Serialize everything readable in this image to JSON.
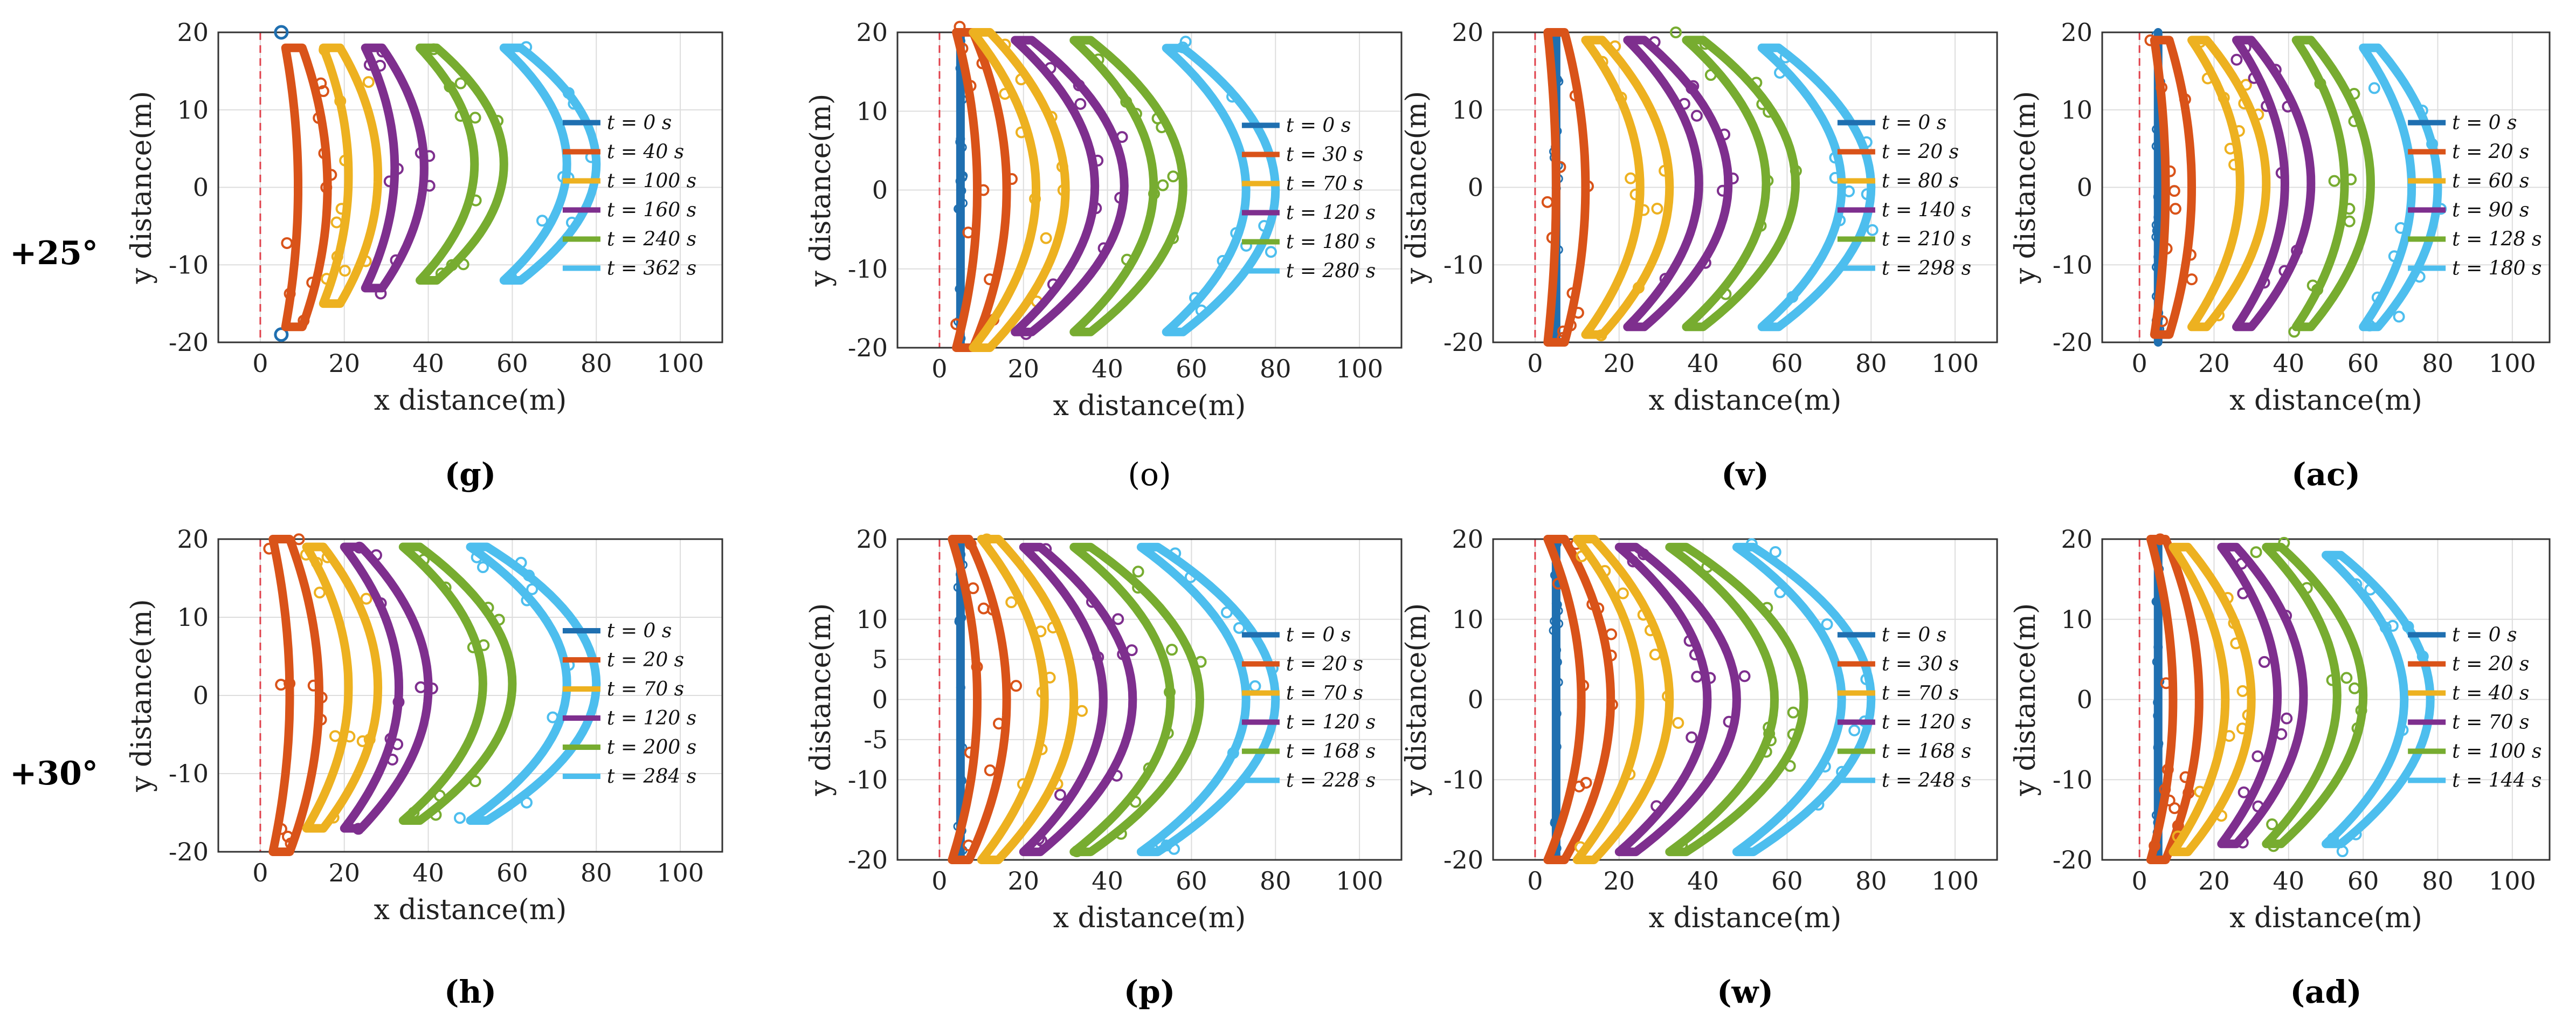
{
  "row_labels": [
    "+25°",
    "+30°"
  ],
  "colors": {
    "t0": "#1f6fb0",
    "t1": "#d95319",
    "t2": "#edb120",
    "t3": "#7e2f8e",
    "t4": "#77ac30",
    "t5": "#4dbeee",
    "reference_line": "#e0414b",
    "grid": "#dddddd"
  },
  "chart_data": [
    {
      "panel": "(g)",
      "type": "scatter",
      "xlabel": "x distance(m)",
      "ylabel": "y distance(m)",
      "xlim": [
        -10,
        110
      ],
      "ylim": [
        -20,
        20
      ],
      "xticks": [
        0,
        20,
        40,
        60,
        80,
        100
      ],
      "yticks": [
        -20,
        -10,
        0,
        10,
        20
      ],
      "grid": true,
      "legend_position": "right",
      "series": [
        {
          "name": "t = 0 s",
          "x_center": 5,
          "x_edge": 5,
          "y_extent": [
            -19,
            20
          ],
          "shape": "sparse"
        },
        {
          "name": "t = 40 s",
          "x_center": 14,
          "x_edge": 10,
          "y_extent": [
            -18,
            18
          ]
        },
        {
          "name": "t = 100 s",
          "x_center": 26,
          "x_edge": 19,
          "y_extent": [
            -15,
            18
          ]
        },
        {
          "name": "t = 160 s",
          "x_center": 37,
          "x_edge": 29,
          "y_extent": [
            -13,
            18
          ]
        },
        {
          "name": "t = 240 s",
          "x_center": 56,
          "x_edge": 42,
          "y_extent": [
            -12,
            18
          ]
        },
        {
          "name": "t = 362 s",
          "x_center": 78,
          "x_edge": 62,
          "y_extent": [
            -12,
            18
          ]
        }
      ]
    },
    {
      "panel": "(o)",
      "type": "scatter",
      "xlabel": "x distance(m)",
      "ylabel": "y distance(m)",
      "xlim": [
        -10,
        110
      ],
      "ylim": [
        -20,
        20
      ],
      "xticks": [
        0,
        20,
        40,
        60,
        80,
        100
      ],
      "yticks": [
        -20,
        -10,
        0,
        10,
        20
      ],
      "grid": true,
      "legend_position": "right",
      "series": [
        {
          "name": "t = 0 s",
          "x_center": 5,
          "x_edge": 5,
          "y_extent": [
            -20,
            20
          ],
          "shape": "line"
        },
        {
          "name": "t = 30 s",
          "x_center": 14,
          "x_edge": 8,
          "y_extent": [
            -20,
            20
          ]
        },
        {
          "name": "t = 70 s",
          "x_center": 28,
          "x_edge": 12,
          "y_extent": [
            -20,
            20
          ]
        },
        {
          "name": "t = 120 s",
          "x_center": 42,
          "x_edge": 22,
          "y_extent": [
            -18,
            19
          ]
        },
        {
          "name": "t = 180 s",
          "x_center": 56,
          "x_edge": 36,
          "y_extent": [
            -18,
            19
          ]
        },
        {
          "name": "t = 280 s",
          "x_center": 78,
          "x_edge": 58,
          "y_extent": [
            -18,
            18
          ]
        }
      ]
    },
    {
      "panel": "(v)",
      "type": "scatter",
      "xlabel": "x distance(m)",
      "ylabel": "y distance(m)",
      "xlim": [
        -10,
        110
      ],
      "ylim": [
        -20,
        20
      ],
      "xticks": [
        0,
        20,
        40,
        60,
        80,
        100
      ],
      "yticks": [
        -20,
        -10,
        0,
        10,
        20
      ],
      "grid": true,
      "legend_position": "right",
      "series": [
        {
          "name": "t = 0 s",
          "x_center": 5,
          "x_edge": 5,
          "y_extent": [
            -20,
            20
          ],
          "shape": "line"
        },
        {
          "name": "t = 20 s",
          "x_center": 10,
          "x_edge": 7,
          "y_extent": [
            -20,
            20
          ]
        },
        {
          "name": "t = 80 s",
          "x_center": 30,
          "x_edge": 16,
          "y_extent": [
            -19,
            19
          ]
        },
        {
          "name": "t = 140 s",
          "x_center": 44,
          "x_edge": 26,
          "y_extent": [
            -18,
            19
          ]
        },
        {
          "name": "t = 210 s",
          "x_center": 60,
          "x_edge": 40,
          "y_extent": [
            -18,
            19
          ]
        },
        {
          "name": "t = 298 s",
          "x_center": 78,
          "x_edge": 58,
          "y_extent": [
            -18,
            18
          ]
        }
      ]
    },
    {
      "panel": "(ac)",
      "type": "scatter",
      "xlabel": "x distance(m)",
      "ylabel": "y distance(m)",
      "xlim": [
        -10,
        110
      ],
      "ylim": [
        -20,
        20
      ],
      "xticks": [
        0,
        20,
        40,
        60,
        80,
        100
      ],
      "yticks": [
        -20,
        -10,
        0,
        10,
        20
      ],
      "grid": true,
      "legend_position": "right",
      "series": [
        {
          "name": "t = 0 s",
          "x_center": 5,
          "x_edge": 5,
          "y_extent": [
            -20,
            20
          ],
          "shape": "line"
        },
        {
          "name": "t = 20 s",
          "x_center": 12,
          "x_edge": 8,
          "y_extent": [
            -19,
            19
          ]
        },
        {
          "name": "t = 60 s",
          "x_center": 32,
          "x_edge": 18,
          "y_extent": [
            -18,
            19
          ]
        },
        {
          "name": "t = 90 s",
          "x_center": 44,
          "x_edge": 30,
          "y_extent": [
            -18,
            19
          ]
        },
        {
          "name": "t = 128 s",
          "x_center": 60,
          "x_edge": 46,
          "y_extent": [
            -18,
            19
          ]
        },
        {
          "name": "t = 180 s",
          "x_center": 78,
          "x_edge": 64,
          "y_extent": [
            -18,
            18
          ]
        }
      ]
    },
    {
      "panel": "(h)",
      "type": "scatter",
      "xlabel": "x distance(m)",
      "ylabel": "y distance(m)",
      "xlim": [
        -10,
        110
      ],
      "ylim": [
        -20,
        20
      ],
      "xticks": [
        0,
        20,
        40,
        60,
        80,
        100
      ],
      "yticks": [
        -20,
        -10,
        0,
        10,
        20
      ],
      "grid": true,
      "legend_position": "right",
      "series": [
        {
          "name": "t = 0 s",
          "x_center": 5,
          "x_edge": 5,
          "y_extent": [
            -20,
            20
          ],
          "shape": "none"
        },
        {
          "name": "t = 20 s",
          "x_center": 12,
          "x_edge": 7,
          "y_extent": [
            -20,
            20
          ]
        },
        {
          "name": "t = 70 s",
          "x_center": 26,
          "x_edge": 15,
          "y_extent": [
            -17,
            19
          ]
        },
        {
          "name": "t = 120 s",
          "x_center": 38,
          "x_edge": 24,
          "y_extent": [
            -17,
            19
          ]
        },
        {
          "name": "t = 200 s",
          "x_center": 58,
          "x_edge": 38,
          "y_extent": [
            -16,
            19
          ]
        },
        {
          "name": "t = 284 s",
          "x_center": 78,
          "x_edge": 54,
          "y_extent": [
            -16,
            19
          ]
        }
      ]
    },
    {
      "panel": "(p)",
      "type": "scatter",
      "xlabel": "x distance(m)",
      "ylabel": "y distance(m)",
      "xlim": [
        -10,
        110
      ],
      "ylim": [
        -20,
        20
      ],
      "xticks": [
        0,
        20,
        40,
        60,
        80,
        100
      ],
      "yticks": [
        -20,
        -10,
        -5,
        0,
        5,
        10,
        20
      ],
      "grid": true,
      "legend_position": "right",
      "series": [
        {
          "name": "t = 0 s",
          "x_center": 5,
          "x_edge": 5,
          "y_extent": [
            -20,
            20
          ],
          "shape": "line"
        },
        {
          "name": "t = 20 s",
          "x_center": 14,
          "x_edge": 7,
          "y_extent": [
            -20,
            20
          ]
        },
        {
          "name": "t = 70 s",
          "x_center": 30,
          "x_edge": 14,
          "y_extent": [
            -20,
            20
          ]
        },
        {
          "name": "t = 120 s",
          "x_center": 44,
          "x_edge": 24,
          "y_extent": [
            -19,
            19
          ]
        },
        {
          "name": "t = 168 s",
          "x_center": 60,
          "x_edge": 36,
          "y_extent": [
            -19,
            19
          ]
        },
        {
          "name": "t = 228 s",
          "x_center": 78,
          "x_edge": 52,
          "y_extent": [
            -19,
            19
          ]
        }
      ]
    },
    {
      "panel": "(w)",
      "type": "scatter",
      "xlabel": "x distance(m)",
      "ylabel": "y distance(m)",
      "xlim": [
        -10,
        110
      ],
      "ylim": [
        -20,
        20
      ],
      "xticks": [
        0,
        20,
        40,
        60,
        80,
        100
      ],
      "yticks": [
        -20,
        -10,
        0,
        10,
        20
      ],
      "grid": true,
      "legend_position": "right",
      "series": [
        {
          "name": "t = 0 s",
          "x_center": 5,
          "x_edge": 5,
          "y_extent": [
            -20,
            20
          ],
          "shape": "line"
        },
        {
          "name": "t = 30 s",
          "x_center": 16,
          "x_edge": 7,
          "y_extent": [
            -20,
            20
          ]
        },
        {
          "name": "t = 70 s",
          "x_center": 30,
          "x_edge": 14,
          "y_extent": [
            -20,
            20
          ]
        },
        {
          "name": "t = 120 s",
          "x_center": 46,
          "x_edge": 24,
          "y_extent": [
            -19,
            19
          ]
        },
        {
          "name": "t = 168 s",
          "x_center": 62,
          "x_edge": 36,
          "y_extent": [
            -19,
            19
          ]
        },
        {
          "name": "t = 248 s",
          "x_center": 78,
          "x_edge": 52,
          "y_extent": [
            -19,
            19
          ]
        }
      ]
    },
    {
      "panel": "(ad)",
      "type": "scatter",
      "xlabel": "x distance(m)",
      "ylabel": "y distance(m)",
      "xlim": [
        -10,
        110
      ],
      "ylim": [
        -20,
        20
      ],
      "xticks": [
        0,
        20,
        40,
        60,
        80,
        100
      ],
      "yticks": [
        -20,
        -10,
        0,
        10,
        20
      ],
      "grid": true,
      "legend_position": "right",
      "series": [
        {
          "name": "t = 0 s",
          "x_center": 5,
          "x_edge": 5,
          "y_extent": [
            -20,
            20
          ],
          "shape": "line"
        },
        {
          "name": "t = 20 s",
          "x_center": 14,
          "x_edge": 7,
          "y_extent": [
            -20,
            20
          ]
        },
        {
          "name": "t = 40 s",
          "x_center": 28,
          "x_edge": 13,
          "y_extent": [
            -19,
            19
          ]
        },
        {
          "name": "t = 70 s",
          "x_center": 42,
          "x_edge": 26,
          "y_extent": [
            -18,
            19
          ]
        },
        {
          "name": "t = 100 s",
          "x_center": 58,
          "x_edge": 38,
          "y_extent": [
            -18,
            19
          ]
        },
        {
          "name": "t = 144 s",
          "x_center": 76,
          "x_edge": 54,
          "y_extent": [
            -18,
            18
          ]
        }
      ]
    }
  ]
}
